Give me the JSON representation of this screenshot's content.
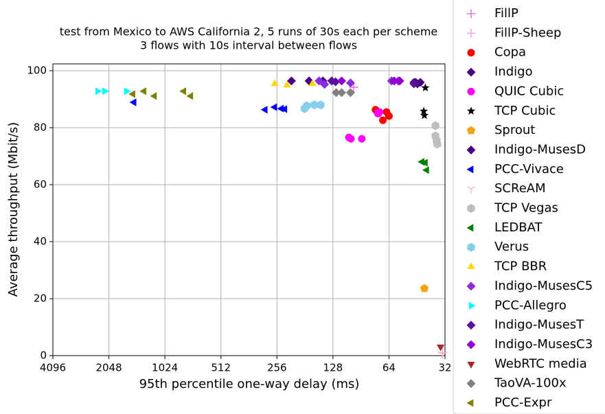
{
  "chart_data": {
    "type": "scatter",
    "title": "test from Mexico to AWS California 2, 5 runs of 30s each per scheme",
    "subtitle": "3 flows with 10s interval between flows",
    "x_label": "95th percentile one-way delay (ms)",
    "y_label": "Average throughput (Mbit/s)",
    "xscale": "log",
    "log_base": 2,
    "xlim": [
      4096,
      32
    ],
    "xticks": [
      4096,
      2048,
      1024,
      512,
      256,
      128,
      64,
      32
    ],
    "ylim": [
      0,
      102.4
    ],
    "yticks": [
      0,
      20,
      40,
      60,
      80,
      100
    ],
    "grid": true,
    "legend": "right",
    "series": [
      {
        "name": "FillP",
        "color": "#e377e3",
        "marker": "plus",
        "x": [
          99
        ],
        "y": [
          94.2
        ]
      },
      {
        "name": "FillP-Sheep",
        "color": "#f2a6e6",
        "marker": "plus",
        "x": [
          33
        ],
        "y": [
          1
        ]
      },
      {
        "name": "Copa",
        "color": "#ff0000",
        "marker": "circle",
        "x": [
          75.6,
          73,
          69,
          66,
          64
        ],
        "y": [
          86.3,
          85,
          82.6,
          85.5,
          84.1
        ]
      },
      {
        "name": "Indigo",
        "color": "#4b0082",
        "marker": "diamond",
        "x": [
          46.9,
          45,
          43.4
        ],
        "y": [
          95.9,
          95.4,
          95.9
        ]
      },
      {
        "name": "QUIC Cubic",
        "color": "#ff00ff",
        "marker": "circle",
        "x": [
          105,
          102.5,
          89.6,
          73.5,
          72
        ],
        "y": [
          76.6,
          76.1,
          76.1,
          85,
          85.5
        ]
      },
      {
        "name": "TCP Cubic",
        "color": "#000000",
        "marker": "star",
        "x": [
          40.8,
          41.6,
          41.3
        ],
        "y": [
          94,
          85.8,
          84.3
        ]
      },
      {
        "name": "Sprout",
        "color": "#f5a30f",
        "marker": "pentagon",
        "x": [
          41.3
        ],
        "y": [
          23.6
        ]
      },
      {
        "name": "Indigo-MusesD",
        "color": "#4b0082",
        "marker": "diamond",
        "x": [
          214,
          172,
          145,
          46
        ],
        "y": [
          96.4,
          96.4,
          96.4,
          95.9
        ]
      },
      {
        "name": "PCC-Vivace",
        "color": "#0000ff",
        "marker": "triangle-left",
        "x": [
          1500,
          296,
          263,
          242,
          232
        ],
        "y": [
          88.9,
          86.3,
          87.2,
          86.7,
          86.5
        ]
      },
      {
        "name": "SCReAM",
        "color": "#ffb6c1",
        "marker": "tri-down",
        "x": [
          33
        ],
        "y": [
          0.5
        ]
      },
      {
        "name": "TCP Vegas",
        "color": "#bebebe",
        "marker": "hexagon",
        "x": [
          36,
          36,
          35.5,
          35.2
        ],
        "y": [
          80.7,
          77.1,
          75.4,
          74.2
        ]
      },
      {
        "name": "LEDBAT",
        "color": "#008000",
        "marker": "triangle-left",
        "x": [
          42.5,
          40.8,
          40.1
        ],
        "y": [
          68,
          67.7,
          65.1
        ]
      },
      {
        "name": "Verus",
        "color": "#87ceeb",
        "marker": "hexagon",
        "x": [
          182,
          177,
          161,
          149
        ],
        "y": [
          86.7,
          87.7,
          88,
          88
        ]
      },
      {
        "name": "TCP BBR",
        "color": "#ffd700",
        "marker": "triangle-up",
        "x": [
          263,
          226,
          165
        ],
        "y": [
          95.4,
          94.9,
          95.4
        ]
      },
      {
        "name": "Indigo-MusesC5",
        "color": "#8a2be2",
        "marker": "diamond",
        "x": [
          152,
          142,
          103,
          62,
          57
        ],
        "y": [
          96.4,
          95.2,
          95.7,
          96.4,
          96.4
        ]
      },
      {
        "name": "PCC-Allegro",
        "color": "#00ffff",
        "marker": "triangle-right",
        "x": [
          2350,
          2160,
          1650
        ],
        "y": [
          92.8,
          92.8,
          92.8
        ]
      },
      {
        "name": "Indigo-MusesT",
        "color": "#5a0f9e",
        "marker": "diamond",
        "x": [
          130,
          124,
          47
        ],
        "y": [
          96.4,
          96.1,
          95.4
        ]
      },
      {
        "name": "Indigo-MusesC3",
        "color": "#9400d3",
        "marker": "diamond",
        "x": [
          115,
          60,
          56
        ],
        "y": [
          96.4,
          96.4,
          96.4
        ]
      },
      {
        "name": "WebRTC media",
        "color": "#a52a2a",
        "marker": "triangle-down",
        "x": [
          33.8
        ],
        "y": [
          3.1
        ]
      },
      {
        "name": "TaoVA-100x",
        "color": "#808080",
        "marker": "diamond",
        "x": [
          123,
          115,
          103
        ],
        "y": [
          92.3,
          92.3,
          92.3
        ]
      },
      {
        "name": "PCC-Expr",
        "color": "#808000",
        "marker": "triangle-left",
        "x": [
          1520,
          1325,
          1165,
          810,
          743
        ],
        "y": [
          91.8,
          92.8,
          91.1,
          92.8,
          91.1
        ]
      }
    ]
  }
}
